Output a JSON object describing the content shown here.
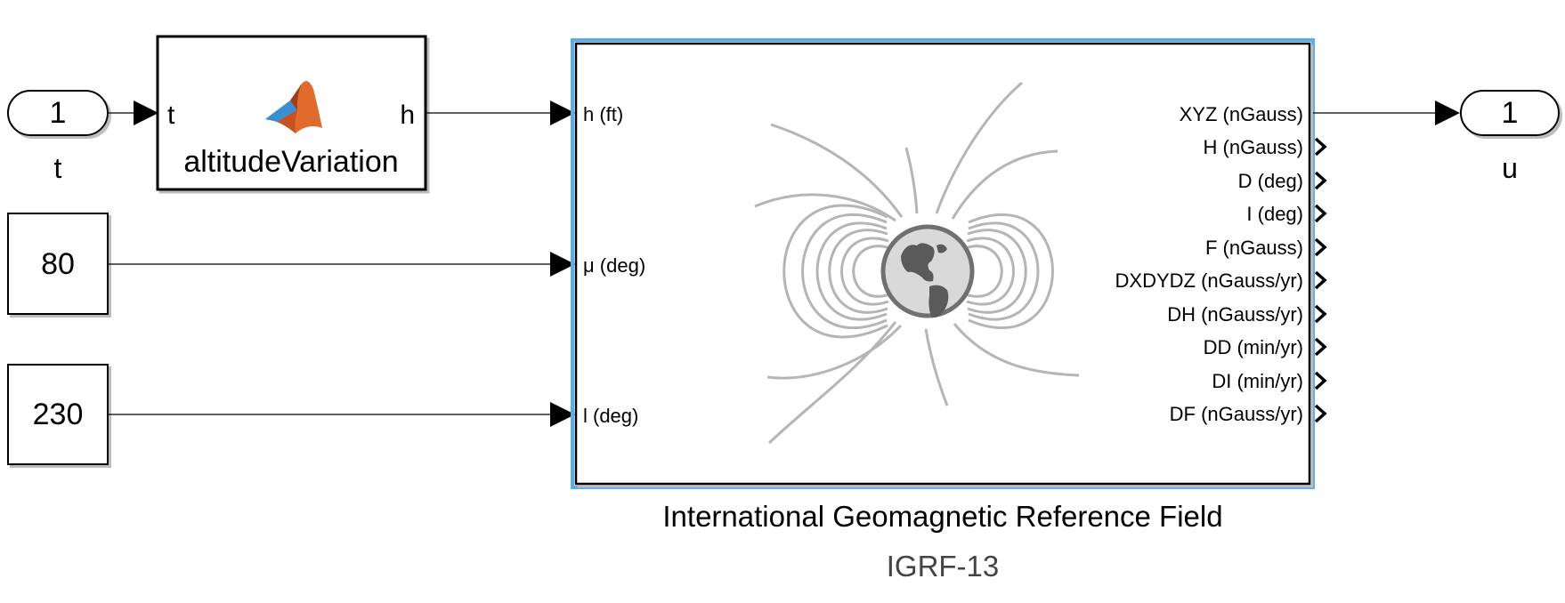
{
  "inport": {
    "number": "1",
    "name": "t"
  },
  "matlab_fn": {
    "name": "altitudeVariation",
    "input": "t",
    "output": "h"
  },
  "constants": [
    {
      "value": "80"
    },
    {
      "value": "230"
    }
  ],
  "igrf": {
    "inputs": [
      "h (ft)",
      "μ (deg)",
      "l (deg)"
    ],
    "outputs": [
      "XYZ (nGauss)",
      "H (nGauss)",
      "D (deg)",
      "I (deg)",
      "F (nGauss)",
      "DXDYDZ (nGauss/yr)",
      "DH (nGauss/yr)",
      "DD (min/yr)",
      "DI (min/yr)",
      "DF (nGauss/yr)"
    ],
    "name": "International Geomagnetic Reference Field",
    "subtitle": "IGRF-13"
  },
  "outport": {
    "number": "1",
    "name": "u"
  },
  "colors": {
    "selection": "#5aaee8",
    "field_lines": "#b5b5b5",
    "matlab_logo": "#e06b2c"
  }
}
